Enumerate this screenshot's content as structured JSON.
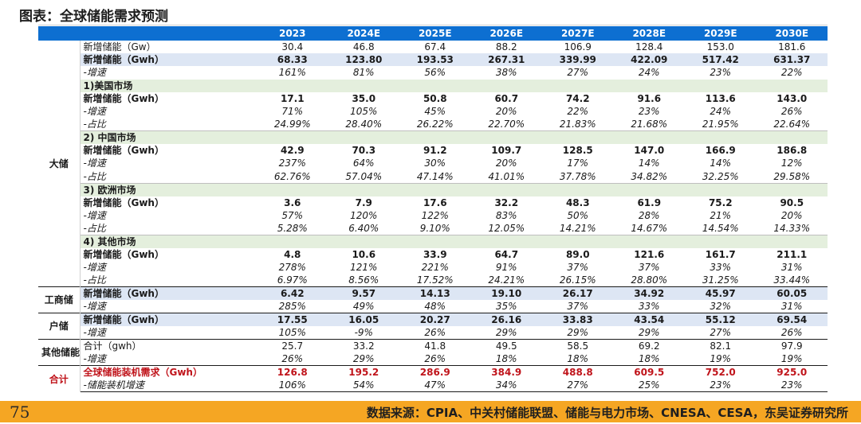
{
  "title": "图表：全球储能需求预测",
  "header": [
    "",
    "",
    "2023",
    "2024E",
    "2025E",
    "2026E",
    "2027E",
    "2028E",
    "2029E",
    "2030E"
  ],
  "rows": [
    {
      "seg": "",
      "label": "新增储能（Gw）",
      "values": [
        "30.4",
        "46.8",
        "67.4",
        "88.2",
        "106.9",
        "128.4",
        "153.0",
        "181.6"
      ],
      "style": "plain"
    },
    {
      "seg": "",
      "label": "新增储能（Gwh）",
      "values": [
        "68.33",
        "123.80",
        "193.53",
        "267.31",
        "339.99",
        "422.09",
        "517.42",
        "631.37"
      ],
      "style": "bold blue"
    },
    {
      "seg": "",
      "label": "-增速",
      "values": [
        "161%",
        "81%",
        "56%",
        "38%",
        "27%",
        "24%",
        "23%",
        "22%"
      ],
      "style": "italic"
    },
    {
      "seg": "",
      "label": "1)美国市场",
      "values": null,
      "style": "green"
    },
    {
      "seg": "",
      "label": "新增储能（Gwh）",
      "values": [
        "17.1",
        "35.0",
        "50.8",
        "60.7",
        "74.2",
        "91.6",
        "113.6",
        "143.0"
      ],
      "style": "bold"
    },
    {
      "seg": "",
      "label": "-增速",
      "values": [
        "71%",
        "105%",
        "45%",
        "20%",
        "22%",
        "23%",
        "24%",
        "26%"
      ],
      "style": "italic"
    },
    {
      "seg": "",
      "label": "-占比",
      "values": [
        "24.99%",
        "28.40%",
        "26.22%",
        "22.70%",
        "21.83%",
        "21.68%",
        "21.95%",
        "22.64%"
      ],
      "style": "italic thin-bottom"
    },
    {
      "seg": "",
      "label": "2) 中国市场",
      "values": null,
      "style": "green"
    },
    {
      "seg": "大储",
      "label": "新增储能（Gwh）",
      "values": [
        "42.9",
        "70.3",
        "91.2",
        "109.7",
        "128.5",
        "147.0",
        "166.9",
        "186.8"
      ],
      "style": "bold"
    },
    {
      "seg": "",
      "label": "-增速",
      "values": [
        "237%",
        "64%",
        "30%",
        "20%",
        "17%",
        "14%",
        "14%",
        "12%"
      ],
      "style": "italic"
    },
    {
      "seg": "",
      "label": "-占比",
      "values": [
        "62.76%",
        "57.04%",
        "47.14%",
        "41.01%",
        "37.78%",
        "34.82%",
        "32.25%",
        "29.58%"
      ],
      "style": "italic thin-bottom"
    },
    {
      "seg": "",
      "label": "3) 欧洲市场",
      "values": null,
      "style": "green"
    },
    {
      "seg": "",
      "label": "新增储能（Gwh）",
      "values": [
        "3.6",
        "7.9",
        "17.6",
        "32.2",
        "48.3",
        "61.9",
        "75.2",
        "90.5"
      ],
      "style": "bold"
    },
    {
      "seg": "",
      "label": "-增速",
      "values": [
        "57%",
        "120%",
        "122%",
        "83%",
        "50%",
        "28%",
        "21%",
        "20%"
      ],
      "style": "italic"
    },
    {
      "seg": "",
      "label": "-占比",
      "values": [
        "5.28%",
        "6.40%",
        "9.10%",
        "12.05%",
        "14.21%",
        "14.67%",
        "14.54%",
        "14.33%"
      ],
      "style": "italic thin-bottom"
    },
    {
      "seg": "",
      "label": "4) 其他市场",
      "values": null,
      "style": "green"
    },
    {
      "seg": "",
      "label": "新增储能（Gwh）",
      "values": [
        "4.8",
        "10.6",
        "33.9",
        "64.7",
        "89.0",
        "121.6",
        "161.7",
        "211.1"
      ],
      "style": "bold"
    },
    {
      "seg": "",
      "label": "-增速",
      "values": [
        "278%",
        "121%",
        "221%",
        "91%",
        "37%",
        "37%",
        "33%",
        "31%"
      ],
      "style": "italic"
    },
    {
      "seg": "",
      "label": "-占比",
      "values": [
        "6.97%",
        "8.56%",
        "17.52%",
        "24.21%",
        "26.15%",
        "28.80%",
        "31.25%",
        "33.44%"
      ],
      "style": "italic"
    },
    {
      "seg": "工商储",
      "label": "新增储能（Gwh）",
      "values": [
        "6.42",
        "9.57",
        "14.13",
        "19.10",
        "26.17",
        "34.92",
        "45.97",
        "60.05"
      ],
      "style": "bold blue grp-start"
    },
    {
      "seg": "",
      "label": "-增速",
      "values": [
        "285%",
        "49%",
        "48%",
        "35%",
        "37%",
        "33%",
        "32%",
        "31%"
      ],
      "style": "italic"
    },
    {
      "seg": "户储",
      "label": "新增储能（Gwh）",
      "values": [
        "17.55",
        "16.05",
        "20.27",
        "26.16",
        "33.83",
        "43.54",
        "55.12",
        "69.54"
      ],
      "style": "bold blue grp-start"
    },
    {
      "seg": "",
      "label": "-增速",
      "values": [
        "105%",
        "-9%",
        "26%",
        "29%",
        "29%",
        "29%",
        "27%",
        "26%"
      ],
      "style": "italic"
    },
    {
      "seg": "其他储能",
      "label": "合计（gwh）",
      "values": [
        "25.7",
        "33.2",
        "41.8",
        "49.5",
        "58.5",
        "69.2",
        "82.1",
        "97.9"
      ],
      "style": "plain grp-start"
    },
    {
      "seg": "",
      "label": "-增速",
      "values": [
        "26%",
        "29%",
        "26%",
        "18%",
        "18%",
        "18%",
        "19%",
        "19%"
      ],
      "style": "italic"
    },
    {
      "seg": "合计",
      "label": "全球储能装机需求（Gwh）",
      "values": [
        "126.8",
        "195.2",
        "286.9",
        "384.9",
        "488.8",
        "609.5",
        "752.0",
        "925.0"
      ],
      "style": "red grp-start"
    },
    {
      "seg": "",
      "label": "-储能装机增速",
      "values": [
        "106%",
        "54%",
        "47%",
        "34%",
        "27%",
        "25%",
        "23%",
        "23%"
      ],
      "style": "italic grp-end"
    }
  ],
  "footer": {
    "page": "75",
    "source": "数据来源：CPIA、中关村储能联盟、储能与电力市场、CNESA、CESA，东吴证券研究所"
  },
  "colors": {
    "header": "#0d6fd1",
    "footer": "#f5a623",
    "highlight": "#dde6f4",
    "section": "#e4efdd",
    "total": "#c0141b"
  }
}
